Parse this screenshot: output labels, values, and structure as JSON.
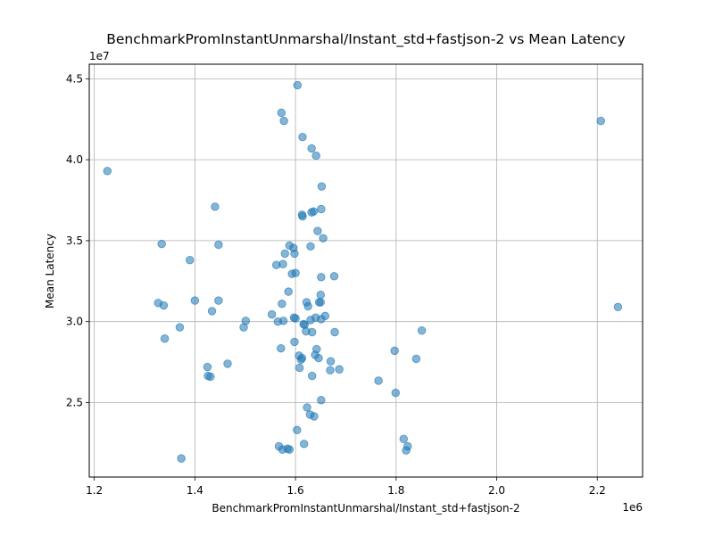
{
  "chart_data": {
    "type": "scatter",
    "title": "BenchmarkPromInstantUnmarshal/Instant_std+fastjson-2 vs Mean Latency",
    "xlabel": "BenchmarkPromInstantUnmarshal/Instant_std+fastjson-2",
    "ylabel": "Mean Latency",
    "x_offset_label": "1e6",
    "y_offset_label": "1e7",
    "xlim": [
      1190000,
      2290000
    ],
    "ylim": [
      20400000,
      45900000
    ],
    "xticks": [
      1200000,
      1400000,
      1600000,
      1800000,
      2000000,
      2200000
    ],
    "xtick_labels": [
      "1.2",
      "1.4",
      "1.6",
      "1.8",
      "2.0",
      "2.2"
    ],
    "yticks": [
      25000000,
      30000000,
      35000000,
      40000000,
      45000000
    ],
    "ytick_labels": [
      "2.5",
      "3.0",
      "3.5",
      "4.0",
      "4.5"
    ],
    "grid": true,
    "point_color": "#1f77b4",
    "point_alpha": 0.55,
    "series": [
      {
        "x": [
          1226000,
          1604000,
          1572000,
          1577000,
          1614000,
          1632000,
          1641000,
          1652000,
          1636000,
          1632000,
          1613000,
          1614000,
          1440000,
          1651000,
          1644000,
          1655000,
          1588000,
          1596000,
          1630000,
          1447000,
          1334000,
          1598000,
          1579000,
          1390000,
          1562000,
          1575000,
          1600000,
          1593000,
          1651000,
          1677000,
          1586000,
          1650000,
          1622000,
          1647000,
          1327000,
          1338000,
          1400000,
          1447000,
          1573000,
          1625000,
          1650000,
          1434000,
          1553000,
          1597000,
          1576000,
          1640000,
          1659000,
          1651000,
          1630000,
          1600000,
          1565000,
          1616000,
          1501000,
          1497000,
          1370000,
          1618000,
          1621000,
          1633000,
          1678000,
          1851000,
          1340000,
          1598000,
          1571000,
          1642000,
          1797000,
          1607000,
          1639000,
          1646000,
          1611000,
          1613000,
          1670000,
          1669000,
          1687000,
          1840000,
          1465000,
          1425000,
          1608000,
          1426000,
          1431000,
          1633000,
          1765000,
          1799000,
          1651000,
          1623000,
          1629000,
          1637000,
          1603000,
          1815000,
          1617000,
          1567000,
          1574000,
          1588000,
          1584000,
          1823000,
          1820000,
          1373000,
          2207000,
          2241000
        ],
        "y": [
          39300000,
          44600000,
          42900000,
          42400000,
          41400000,
          40700000,
          40250000,
          38350000,
          36800000,
          36750000,
          36600000,
          36500000,
          37100000,
          36950000,
          35600000,
          35150000,
          34700000,
          34550000,
          34650000,
          34750000,
          34800000,
          34200000,
          34200000,
          33800000,
          33500000,
          33550000,
          33000000,
          32950000,
          32750000,
          32800000,
          31850000,
          31650000,
          31200000,
          31200000,
          31150000,
          31000000,
          31300000,
          31300000,
          31100000,
          30950000,
          31200000,
          30650000,
          30450000,
          30250000,
          30050000,
          30250000,
          30350000,
          30150000,
          30100000,
          30200000,
          30000000,
          29850000,
          30050000,
          29650000,
          29650000,
          29800000,
          29400000,
          29350000,
          29350000,
          29450000,
          28950000,
          28750000,
          28350000,
          28300000,
          28200000,
          27900000,
          27950000,
          27750000,
          27650000,
          27750000,
          27550000,
          27000000,
          27050000,
          27700000,
          27400000,
          27200000,
          27150000,
          26650000,
          26600000,
          26650000,
          26350000,
          25600000,
          25150000,
          24700000,
          24250000,
          24150000,
          23300000,
          22750000,
          22450000,
          22300000,
          22100000,
          22100000,
          22150000,
          22300000,
          22050000,
          21550000,
          42400000,
          30900000
        ]
      }
    ]
  }
}
